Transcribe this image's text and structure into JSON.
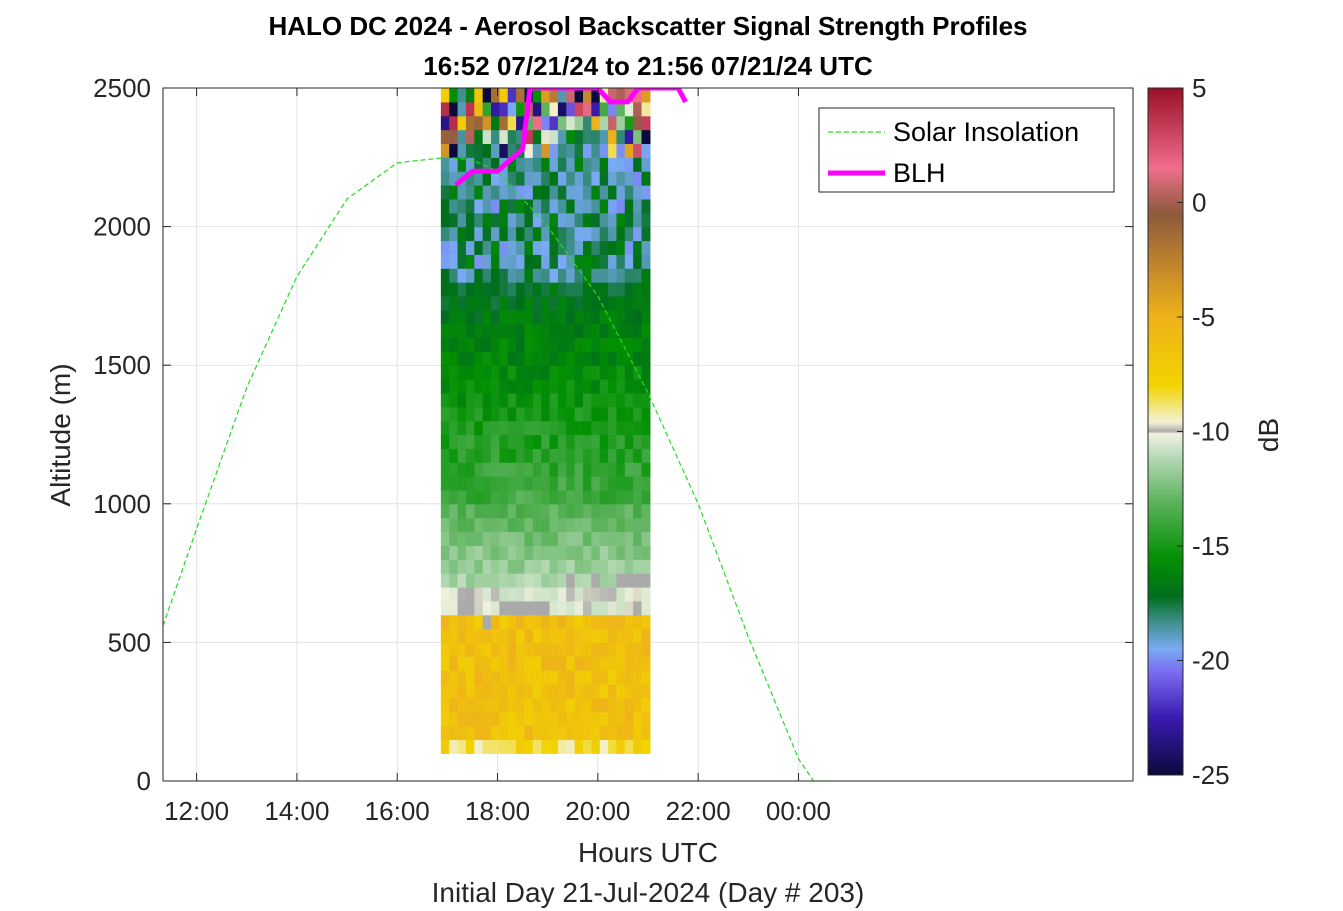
{
  "chart_data": {
    "type": "heatmap",
    "title": "HALO DC 2024 - Aerosol Backscatter Signal Strength Profiles",
    "subtitle": "16:52 07/21/24 to 21:56 07/21/24  UTC",
    "xlabel": "Hours UTC",
    "xlabel_sub": "Initial Day 21-Jul-2024 (Day # 203)",
    "ylabel": "Altitude (m)",
    "colorbar_label": "dB",
    "xlim_hours": [
      11.33,
      30.67
    ],
    "ylim": [
      0,
      2500
    ],
    "x_ticks": [
      {
        "value": 12,
        "label": "12:00"
      },
      {
        "value": 14,
        "label": "14:00"
      },
      {
        "value": 16,
        "label": "16:00"
      },
      {
        "value": 18,
        "label": "18:00"
      },
      {
        "value": 20,
        "label": "20:00"
      },
      {
        "value": 22,
        "label": "22:00"
      },
      {
        "value": 24,
        "label": "00:00"
      }
    ],
    "y_ticks": [
      0,
      500,
      1000,
      1500,
      2000,
      2500
    ],
    "clim": [
      -25,
      5
    ],
    "colorbar_ticks": [
      5,
      0,
      -5,
      -10,
      -15,
      -20,
      -25
    ],
    "grid": true,
    "legend_position": "top-right",
    "heatmap": {
      "time_start_hours": 16.87,
      "time_step_hours": 0.1667,
      "num_profiles": 25,
      "alt_start_m": 100,
      "alt_step_m": 50,
      "colormap_stops": [
        {
          "value": -25,
          "color": "#0a0a3c"
        },
        {
          "value": -22.5,
          "color": "#3a1ab0"
        },
        {
          "value": -20.5,
          "color": "#7b6cf0"
        },
        {
          "value": -19.5,
          "color": "#7aaaf5"
        },
        {
          "value": -18.3,
          "color": "#3d8f8a"
        },
        {
          "value": -17.2,
          "color": "#006d1c"
        },
        {
          "value": -15.5,
          "color": "#039103"
        },
        {
          "value": -13,
          "color": "#5fb45f"
        },
        {
          "value": -11,
          "color": "#bcdcbc"
        },
        {
          "value": -10.1,
          "color": "#f2f2e0"
        },
        {
          "value": -10,
          "color": "#aaaaaa"
        },
        {
          "value": -9.6,
          "color": "#f3f1d5"
        },
        {
          "value": -8,
          "color": "#f2d400"
        },
        {
          "value": -5,
          "color": "#eeb21a"
        },
        {
          "value": -3,
          "color": "#c88a2a"
        },
        {
          "value": -0.5,
          "color": "#8c5a3c"
        },
        {
          "value": 1.5,
          "color": "#f06e8c"
        },
        {
          "value": 5,
          "color": "#9a0f28"
        }
      ],
      "grey_band_value": -10
    },
    "series": [
      {
        "name": "Solar Insolation",
        "color": "#22dd22",
        "style": "dashed",
        "x": [
          11.33,
          12,
          13,
          14,
          15,
          16,
          17,
          17.5,
          18,
          19,
          20,
          21,
          22,
          23,
          24,
          24.3,
          24.67
        ],
        "y": [
          560,
          910,
          1420,
          1820,
          2100,
          2230,
          2250,
          2240,
          2200,
          2000,
          1750,
          1400,
          1000,
          520,
          80,
          0,
          0
        ]
      },
      {
        "name": "BLH",
        "color": "#ff00ff",
        "style": "solid",
        "x": [
          17.17,
          17.5,
          18.0,
          18.5,
          18.65,
          18.85,
          19.5,
          20.0,
          20.25,
          20.6,
          20.8,
          21.2,
          21.6,
          21.75
        ],
        "y": [
          2150,
          2200,
          2200,
          2280,
          2500,
          2500,
          2500,
          2500,
          2450,
          2450,
          2500,
          2500,
          2500,
          2450
        ]
      }
    ]
  }
}
